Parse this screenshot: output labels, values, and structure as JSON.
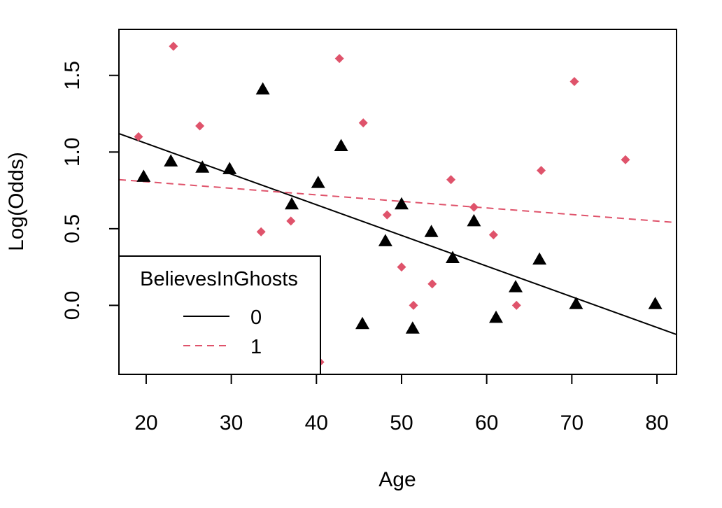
{
  "chart_data": {
    "type": "scatter",
    "xlabel": "Age",
    "ylabel": "Log(Odds)",
    "xlim": [
      16.8,
      82.3
    ],
    "ylim": [
      -0.45,
      1.8
    ],
    "x_ticks": [
      20,
      30,
      40,
      50,
      60,
      70,
      80
    ],
    "y_ticks": [
      0.0,
      0.5,
      1.0,
      1.5
    ],
    "x_tick_labels": [
      "20",
      "30",
      "40",
      "50",
      "60",
      "70",
      "80"
    ],
    "y_tick_labels": [
      "0.0",
      "0.5",
      "1.0",
      "1.5"
    ],
    "grid": false,
    "legend": {
      "title": "BelievesInGhosts",
      "placement": "bottom-left",
      "entries": [
        "0",
        "1"
      ]
    },
    "series": [
      {
        "name": "0",
        "color": "#000000",
        "marker": "triangle",
        "line_style": "solid",
        "points": [
          [
            19.7,
            0.84
          ],
          [
            22.9,
            0.94
          ],
          [
            26.6,
            0.9
          ],
          [
            29.8,
            0.89
          ],
          [
            33.7,
            1.41
          ],
          [
            37.1,
            0.66
          ],
          [
            40.2,
            0.8
          ],
          [
            42.9,
            1.04
          ],
          [
            45.4,
            -0.12
          ],
          [
            48.1,
            0.42
          ],
          [
            50.0,
            0.66
          ],
          [
            51.3,
            -0.15
          ],
          [
            53.5,
            0.48
          ],
          [
            56.0,
            0.31
          ],
          [
            58.5,
            0.55
          ],
          [
            61.1,
            -0.08
          ],
          [
            63.4,
            0.12
          ],
          [
            66.2,
            0.3
          ],
          [
            70.5,
            0.01
          ],
          [
            79.8,
            0.01
          ]
        ],
        "fit": [
          [
            16.8,
            1.12
          ],
          [
            82.3,
            -0.19
          ]
        ]
      },
      {
        "name": "1",
        "color": "#DF536B",
        "marker": "diamond",
        "line_style": "dashed",
        "points": [
          [
            19.1,
            1.1
          ],
          [
            23.2,
            1.69
          ],
          [
            26.3,
            1.17
          ],
          [
            33.5,
            0.48
          ],
          [
            37.0,
            0.55
          ],
          [
            40.4,
            -0.37
          ],
          [
            42.7,
            1.61
          ],
          [
            45.5,
            1.19
          ],
          [
            48.3,
            0.59
          ],
          [
            50.0,
            0.25
          ],
          [
            51.4,
            0.0
          ],
          [
            53.6,
            0.14
          ],
          [
            55.8,
            0.82
          ],
          [
            58.5,
            0.64
          ],
          [
            60.8,
            0.46
          ],
          [
            63.5,
            0.0
          ],
          [
            66.4,
            0.88
          ],
          [
            70.3,
            1.46
          ],
          [
            76.3,
            0.95
          ]
        ],
        "fit": [
          [
            16.8,
            0.82
          ],
          [
            82.3,
            0.54
          ]
        ]
      }
    ]
  }
}
